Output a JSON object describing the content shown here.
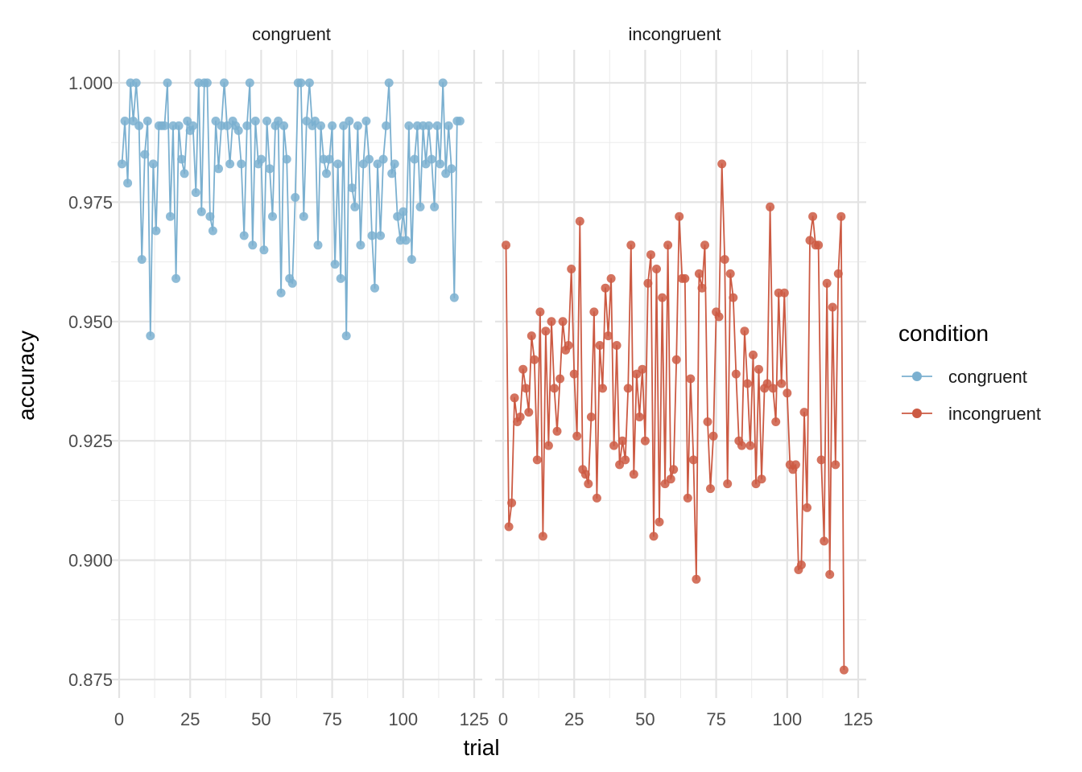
{
  "chart_data": {
    "type": "line",
    "facets": [
      {
        "name": "congruent"
      },
      {
        "name": "incongruent"
      }
    ],
    "xlabel": "trial",
    "ylabel": "accuracy",
    "xlim": [
      0,
      125
    ],
    "ylim": [
      0.875,
      1.0
    ],
    "x_ticks": [
      "0",
      "25",
      "50",
      "75",
      "100",
      "125"
    ],
    "y_ticks": [
      "0.875",
      "0.900",
      "0.925",
      "0.950",
      "0.975",
      "1.000"
    ],
    "grid": true,
    "legend": {
      "title": "condition",
      "placement": "right",
      "entries": [
        "congruent",
        "incongruent"
      ]
    },
    "colors": {
      "congruent": "#7bb0d0",
      "incongruent": "#cc5a43"
    },
    "series": [
      {
        "name": "congruent",
        "x": [
          1,
          2,
          3,
          4,
          5,
          6,
          7,
          8,
          9,
          10,
          11,
          12,
          13,
          14,
          15,
          16,
          17,
          18,
          19,
          20,
          21,
          22,
          23,
          24,
          25,
          26,
          27,
          28,
          29,
          30,
          31,
          32,
          33,
          34,
          35,
          36,
          37,
          38,
          39,
          40,
          41,
          42,
          43,
          44,
          45,
          46,
          47,
          48,
          49,
          50,
          51,
          52,
          53,
          54,
          55,
          56,
          57,
          58,
          59,
          60,
          61,
          62,
          63,
          64,
          65,
          66,
          67,
          68,
          69,
          70,
          71,
          72,
          73,
          74,
          75,
          76,
          77,
          78,
          79,
          80,
          81,
          82,
          83,
          84,
          85,
          86,
          87,
          88,
          89,
          90,
          91,
          92,
          93,
          94,
          95,
          96,
          97,
          98,
          99,
          100,
          101,
          102,
          103,
          104,
          105,
          106,
          107,
          108,
          109,
          110,
          111,
          112,
          113,
          114,
          115,
          116,
          117,
          118,
          119,
          120
        ],
        "y": [
          0.983,
          0.992,
          0.979,
          1.0,
          0.992,
          1.0,
          0.991,
          0.963,
          0.985,
          0.992,
          0.947,
          0.983,
          0.969,
          0.991,
          0.991,
          0.991,
          1.0,
          0.972,
          0.991,
          0.959,
          0.991,
          0.984,
          0.981,
          0.992,
          0.99,
          0.991,
          0.977,
          1.0,
          0.973,
          1.0,
          1.0,
          0.972,
          0.969,
          0.992,
          0.982,
          0.991,
          1.0,
          0.991,
          0.983,
          0.992,
          0.991,
          0.99,
          0.983,
          0.968,
          0.991,
          1.0,
          0.966,
          0.992,
          0.983,
          0.984,
          0.965,
          0.992,
          0.982,
          0.972,
          0.991,
          0.992,
          0.956,
          0.991,
          0.984,
          0.959,
          0.958,
          0.976,
          1.0,
          1.0,
          0.972,
          0.992,
          1.0,
          0.991,
          0.992,
          0.966,
          0.991,
          0.984,
          0.981,
          0.984,
          0.991,
          0.962,
          0.983,
          0.959,
          0.991,
          0.947,
          0.992,
          0.978,
          0.974,
          0.991,
          0.966,
          0.983,
          0.992,
          0.984,
          0.968,
          0.957,
          0.983,
          0.968,
          0.984,
          0.991,
          1.0,
          0.981,
          0.983,
          0.972,
          0.967,
          0.973,
          0.967,
          0.991,
          0.963,
          0.984,
          0.991,
          0.974,
          0.991,
          0.983,
          0.991,
          0.984,
          0.974,
          0.991,
          0.983,
          1.0,
          0.981,
          0.991,
          0.982,
          0.955,
          0.992,
          0.992
        ]
      },
      {
        "name": "incongruent",
        "x": [
          1,
          2,
          3,
          4,
          5,
          6,
          7,
          8,
          9,
          10,
          11,
          12,
          13,
          14,
          15,
          16,
          17,
          18,
          19,
          20,
          21,
          22,
          23,
          24,
          25,
          26,
          27,
          28,
          29,
          30,
          31,
          32,
          33,
          34,
          35,
          36,
          37,
          38,
          39,
          40,
          41,
          42,
          43,
          44,
          45,
          46,
          47,
          48,
          49,
          50,
          51,
          52,
          53,
          54,
          55,
          56,
          57,
          58,
          59,
          60,
          61,
          62,
          63,
          64,
          65,
          66,
          67,
          68,
          69,
          70,
          71,
          72,
          73,
          74,
          75,
          76,
          77,
          78,
          79,
          80,
          81,
          82,
          83,
          84,
          85,
          86,
          87,
          88,
          89,
          90,
          91,
          92,
          93,
          94,
          95,
          96,
          97,
          98,
          99,
          100,
          101,
          102,
          103,
          104,
          105,
          106,
          107,
          108,
          109,
          110,
          111,
          112,
          113,
          114,
          115,
          116,
          117,
          118,
          119,
          120
        ],
        "y": [
          0.966,
          0.907,
          0.912,
          0.934,
          0.929,
          0.93,
          0.94,
          0.936,
          0.931,
          0.947,
          0.942,
          0.921,
          0.952,
          0.905,
          0.948,
          0.924,
          0.95,
          0.936,
          0.927,
          0.938,
          0.95,
          0.944,
          0.945,
          0.961,
          0.939,
          0.926,
          0.971,
          0.919,
          0.918,
          0.916,
          0.93,
          0.952,
          0.913,
          0.945,
          0.936,
          0.957,
          0.947,
          0.959,
          0.924,
          0.945,
          0.92,
          0.925,
          0.921,
          0.936,
          0.966,
          0.918,
          0.939,
          0.93,
          0.94,
          0.925,
          0.958,
          0.964,
          0.905,
          0.961,
          0.908,
          0.955,
          0.916,
          0.966,
          0.917,
          0.919,
          0.942,
          0.972,
          0.959,
          0.959,
          0.913,
          0.938,
          0.921,
          0.896,
          0.96,
          0.957,
          0.966,
          0.929,
          0.915,
          0.926,
          0.952,
          0.951,
          0.983,
          0.963,
          0.916,
          0.96,
          0.955,
          0.939,
          0.925,
          0.924,
          0.948,
          0.937,
          0.924,
          0.943,
          0.916,
          0.94,
          0.917,
          0.936,
          0.937,
          0.974,
          0.936,
          0.929,
          0.956,
          0.937,
          0.956,
          0.935,
          0.92,
          0.919,
          0.92,
          0.898,
          0.899,
          0.931,
          0.911,
          0.967,
          0.972,
          0.966,
          0.966,
          0.921,
          0.904,
          0.958,
          0.897,
          0.953,
          0.92,
          0.96,
          0.972,
          0.877
        ]
      }
    ]
  }
}
